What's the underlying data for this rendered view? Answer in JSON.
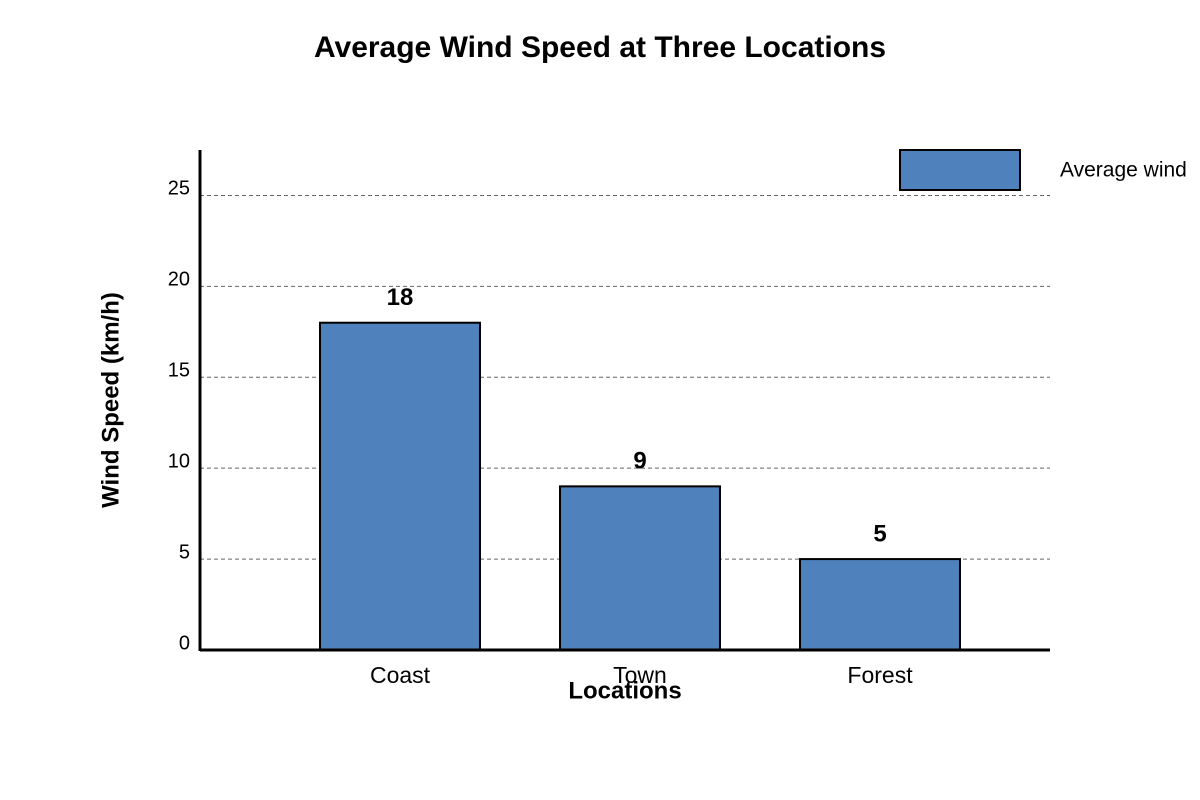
{
  "chart_data": {
    "type": "bar",
    "title": "Average Wind Speed at Three Locations",
    "x_label": "Locations",
    "y_label": "Wind Speed (km/h)",
    "categories": [
      "Coast",
      "Town",
      "Forest"
    ],
    "series": [
      {
        "name": "Average wind",
        "color": "#4f81bd",
        "values": [
          18,
          9,
          5
        ]
      }
    ],
    "ylim": [
      0,
      27.5
    ],
    "yticks": [
      0,
      5,
      10,
      15,
      20,
      25
    ],
    "grid": true,
    "legend": "top-right"
  }
}
